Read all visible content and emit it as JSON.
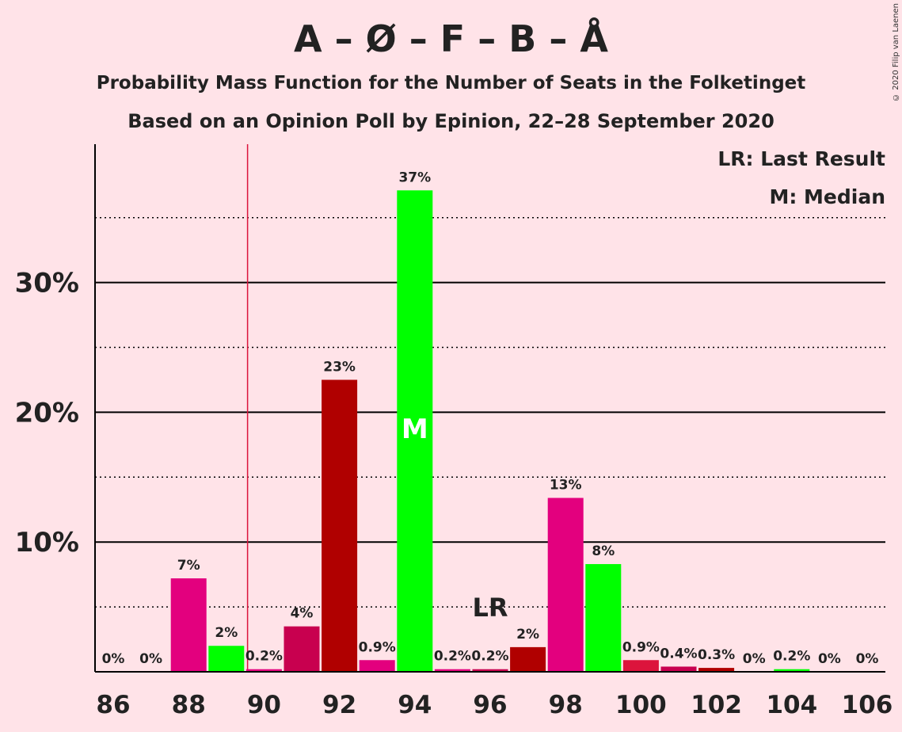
{
  "title": "A – Ø – F – B – Å",
  "subtitle": "Probability Mass Function for the Number of Seats in the Folketinget",
  "subtitle2": "Based on an Opinion Poll by Epinion, 22–28 September 2020",
  "copyright": "© 2020 Filip van Laenen",
  "legend": {
    "last_result": "LR: Last Result",
    "median": "M: Median"
  },
  "markers": {
    "lr_label": "LR",
    "median_label": "M",
    "last_result_seats": 90,
    "lr_label_seats": 96,
    "median_seats": 94
  },
  "chart_data": {
    "type": "bar",
    "x": [
      86,
      87,
      88,
      89,
      90,
      91,
      92,
      93,
      94,
      95,
      96,
      97,
      98,
      99,
      100,
      101,
      102,
      103,
      104,
      105,
      106
    ],
    "values": [
      0,
      0,
      7.2,
      2.0,
      0.2,
      3.5,
      22.5,
      0.9,
      37.1,
      0.2,
      0.2,
      1.9,
      13.4,
      8.3,
      0.9,
      0.4,
      0.3,
      0,
      0.2,
      0,
      0
    ],
    "labels": [
      "0%",
      "0%",
      "7%",
      "2%",
      "0.2%",
      "4%",
      "23%",
      "0.9%",
      "37%",
      "0.2%",
      "0.2%",
      "2%",
      "13%",
      "8%",
      "0.9%",
      "0.4%",
      "0.3%",
      "0%",
      "0.2%",
      "0%",
      "0%"
    ],
    "colors": [
      "#E3007E",
      "#00FF00",
      "#E3007E",
      "#00FF00",
      "#E3007E",
      "#C8004F",
      "#B00000",
      "#E3007E",
      "#00FF00",
      "#E3007E",
      "#C8004F",
      "#B00000",
      "#E3007E",
      "#00FF00",
      "#DC143C",
      "#C8004F",
      "#B00000",
      "#E3007E",
      "#00FF00",
      "#E3007E",
      "#C8004F"
    ],
    "x_ticks": [
      "86",
      "88",
      "90",
      "92",
      "94",
      "96",
      "98",
      "100",
      "102",
      "104",
      "106"
    ],
    "y_ticks": [
      "10%",
      "20%",
      "30%"
    ],
    "ylim": [
      0,
      40
    ],
    "grid": "solid at 10% steps, dotted at 5% steps"
  }
}
